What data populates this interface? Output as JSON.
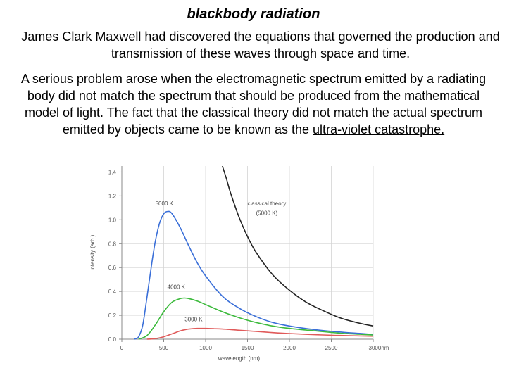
{
  "slide": {
    "title": "blackbody radiation",
    "paragraph1": "James Clark Maxwell had discovered the equations that governed the production and transmission of these waves through space and time.",
    "paragraph2_pre": "A serious problem arose when the electromagnetic spectrum emitted by a radiating body did not match the spectrum that should be produced from the mathematical model of light. The fact that the classical theory did not match the actual spectrum emitted by objects came to be known as the ",
    "paragraph2_link": "ultra-violet catastrophe."
  },
  "chart_data": {
    "type": "line",
    "xlabel": "wavelength (nm)",
    "ylabel": "intensity (arb.)",
    "xlim": [
      0,
      3000
    ],
    "ylim": [
      0,
      1.45
    ],
    "x_ticks": [
      0,
      500,
      1000,
      1500,
      2000,
      2500,
      3000
    ],
    "x_tick_labels": [
      "0",
      "500",
      "1000",
      "1500",
      "2000",
      "2500",
      "3000nm"
    ],
    "y_ticks": [
      0.0,
      0.2,
      0.4,
      0.6,
      0.8,
      1.0,
      1.2,
      1.4
    ],
    "y_tick_labels": [
      "0.0",
      "0.2",
      "0.4",
      "0.6",
      "0.8",
      "1.0",
      "1.2",
      "1.4"
    ],
    "grid": true,
    "series": [
      {
        "name": "5000 K",
        "color": "#3a6fd8",
        "x": [
          150,
          200,
          250,
          300,
          350,
          400,
          450,
          500,
          550,
          600,
          700,
          800,
          900,
          1000,
          1200,
          1400,
          1600,
          1800,
          2000,
          2300,
          2600,
          3000
        ],
        "y": [
          0.0,
          0.02,
          0.12,
          0.35,
          0.6,
          0.82,
          0.97,
          1.05,
          1.07,
          1.05,
          0.93,
          0.78,
          0.64,
          0.53,
          0.36,
          0.26,
          0.19,
          0.14,
          0.11,
          0.08,
          0.06,
          0.04
        ]
      },
      {
        "name": "4000 K",
        "color": "#3cba3c",
        "x": [
          200,
          300,
          400,
          500,
          600,
          700,
          750,
          800,
          900,
          1000,
          1200,
          1400,
          1600,
          1800,
          2000,
          2300,
          2600,
          3000
        ],
        "y": [
          0.0,
          0.03,
          0.12,
          0.23,
          0.31,
          0.34,
          0.345,
          0.34,
          0.32,
          0.29,
          0.23,
          0.18,
          0.14,
          0.11,
          0.09,
          0.07,
          0.05,
          0.035
        ]
      },
      {
        "name": "3000 K",
        "color": "#e05a5a",
        "x": [
          300,
          400,
          500,
          600,
          700,
          800,
          900,
          1000,
          1100,
          1200,
          1400,
          1600,
          1800,
          2000,
          2300,
          2600,
          3000
        ],
        "y": [
          0.0,
          0.005,
          0.02,
          0.045,
          0.07,
          0.085,
          0.09,
          0.09,
          0.088,
          0.085,
          0.075,
          0.065,
          0.055,
          0.047,
          0.038,
          0.031,
          0.025
        ]
      },
      {
        "name": "classical theory (5000 K)",
        "color": "#222222",
        "x": [
          1200,
          1250,
          1300,
          1400,
          1500,
          1600,
          1800,
          2000,
          2200,
          2400,
          2600,
          2800,
          3000
        ],
        "y": [
          1.45,
          1.34,
          1.22,
          1.02,
          0.86,
          0.73,
          0.54,
          0.41,
          0.31,
          0.24,
          0.18,
          0.14,
          0.11
        ]
      }
    ],
    "annotations": [
      "5000 K",
      "4000 K",
      "3000 K",
      "classical theory",
      "(5000 K)"
    ]
  }
}
